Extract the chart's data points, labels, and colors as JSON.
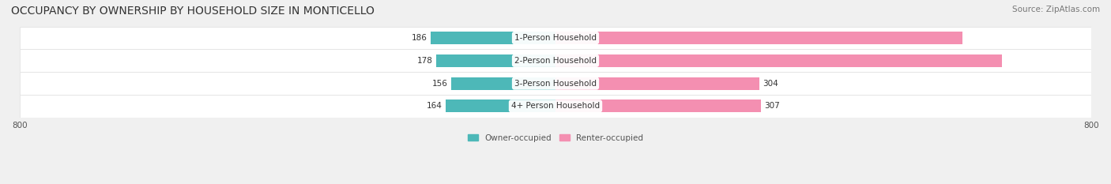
{
  "title": "OCCUPANCY BY OWNERSHIP BY HOUSEHOLD SIZE IN MONTICELLO",
  "source": "Source: ZipAtlas.com",
  "categories": [
    "1-Person Household",
    "2-Person Household",
    "3-Person Household",
    "4+ Person Household"
  ],
  "owner_values": [
    186,
    178,
    156,
    164
  ],
  "renter_values": [
    608,
    667,
    304,
    307
  ],
  "owner_color": "#4db8b8",
  "renter_color": "#f48fb1",
  "axis_min": -800,
  "axis_max": 800,
  "bg_color": "#f0f0f0",
  "row_bg_color": "#ffffff",
  "legend_owner": "Owner-occupied",
  "legend_renter": "Renter-occupied",
  "title_fontsize": 10,
  "source_fontsize": 7.5,
  "bar_height": 0.55,
  "label_fontsize": 7.5
}
